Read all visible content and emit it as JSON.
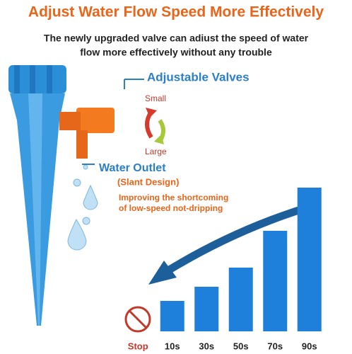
{
  "header": {
    "title": "Adjust Water Flow Speed More Effectively",
    "subtitle": [
      "The newly upgraded valve can adiust the speed of water",
      "flow more effectively without any trouble"
    ]
  },
  "callouts": {
    "valves": "Adjustable Valves",
    "small": "Small",
    "large": "Large",
    "outlet": "Water Outlet",
    "slant": "(Slant Design)",
    "improve": [
      "Improving the shortcoming",
      "of low-speed not-dripping"
    ]
  },
  "chart_data": {
    "type": "bar",
    "categories": [
      "Stop",
      "10s",
      "30s",
      "50s",
      "70s",
      "90s"
    ],
    "values": [
      null,
      43,
      63,
      90,
      142,
      203
    ],
    "color": "#1f80dc"
  }
}
